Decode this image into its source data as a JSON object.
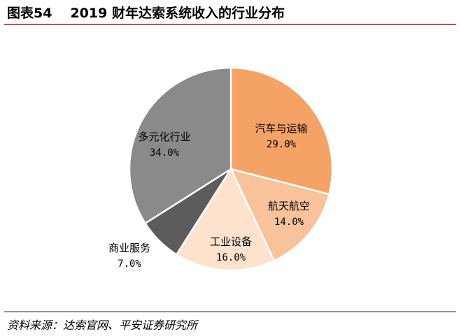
{
  "header": {
    "figure_no": "图表54",
    "title": "2019 财年达索系统收入的行业分布"
  },
  "footer": {
    "source": "资料来源：达索官网、平安证券研究所"
  },
  "chart_data": {
    "type": "pie",
    "start_angle": "12 o'clock",
    "direction": "clockwise",
    "slices": [
      {
        "label": "汽车与运输",
        "value": 29.0,
        "value_label": "29.0%",
        "color": "#f4a266"
      },
      {
        "label": "航天航空",
        "value": 14.0,
        "value_label": "14.0%",
        "color": "#f8c29a"
      },
      {
        "label": "工业设备",
        "value": 16.0,
        "value_label": "16.0%",
        "color": "#fde2cd"
      },
      {
        "label": "商业服务",
        "value": 7.0,
        "value_label": "7.0%",
        "color": "#5c5c5c"
      },
      {
        "label": "多元化行业",
        "value": 34.0,
        "value_label": "34.0%",
        "color": "#8a8a8a"
      }
    ],
    "label_colors": {
      "on_light": "#000000",
      "on_dark": "#000000"
    }
  }
}
